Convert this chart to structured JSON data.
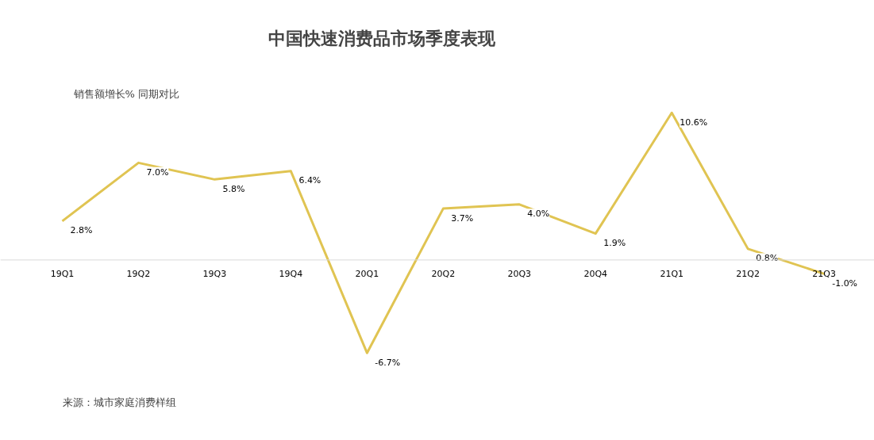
{
  "chart_data": {
    "type": "line",
    "title": "中国快速消费品市场季度表现",
    "ylabel": "销售额增长% 同期对比",
    "categories": [
      "19Q1",
      "19Q2",
      "19Q3",
      "19Q4",
      "20Q1",
      "20Q2",
      "20Q3",
      "20Q4",
      "21Q1",
      "21Q2",
      "21Q3"
    ],
    "series": [
      {
        "color": "#e0c452",
        "values": [
          2.8,
          7.0,
          5.8,
          6.4,
          -6.7,
          3.7,
          4.0,
          1.9,
          10.6,
          0.8,
          -1.0
        ],
        "value_labels": [
          "2.8%",
          "7.0%",
          "5.8%",
          "6.4%",
          "-6.7%",
          "3.7%",
          "4.0%",
          "1.9%",
          "10.6%",
          "0.8%",
          "-1.0%"
        ]
      }
    ],
    "annotations": [
      "来源：城市家庭消费样组"
    ],
    "grid": false,
    "marker": "none",
    "line_style": "solid"
  }
}
